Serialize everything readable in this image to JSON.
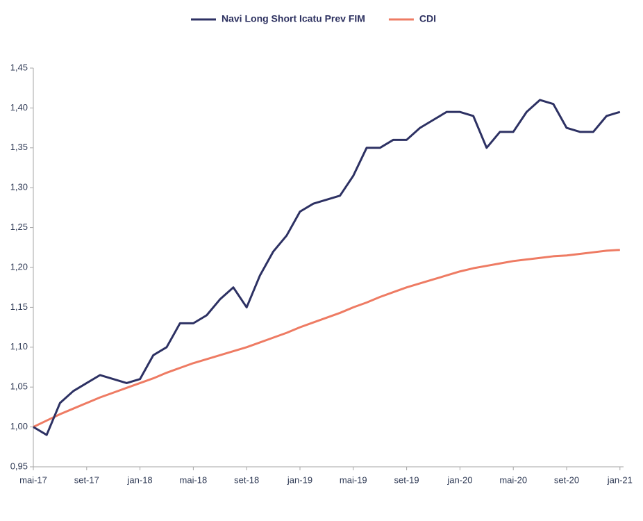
{
  "chart_data": {
    "type": "line",
    "categories": [
      "mai-17",
      null,
      null,
      null,
      "set-17",
      null,
      null,
      null,
      "jan-18",
      null,
      null,
      null,
      "mai-18",
      null,
      null,
      null,
      "set-18",
      null,
      null,
      null,
      "jan-19",
      null,
      null,
      null,
      "mai-19",
      null,
      null,
      null,
      "set-19",
      null,
      null,
      null,
      "jan-20",
      null,
      null,
      null,
      "mai-20",
      null,
      null,
      null,
      "set-20",
      null,
      null,
      null,
      "jan-21"
    ],
    "series": [
      {
        "name": "Navi Long Short Icatu Prev FIM",
        "color": "#2d3163",
        "values": [
          1.0,
          0.99,
          1.03,
          1.045,
          1.055,
          1.065,
          1.06,
          1.055,
          1.06,
          1.09,
          1.1,
          1.13,
          1.13,
          1.14,
          1.16,
          1.175,
          1.15,
          1.19,
          1.22,
          1.24,
          1.27,
          1.28,
          1.285,
          1.29,
          1.315,
          1.35,
          1.35,
          1.36,
          1.36,
          1.375,
          1.385,
          1.395,
          1.395,
          1.39,
          1.35,
          1.37,
          1.37,
          1.395,
          1.41,
          1.405,
          1.375,
          1.37,
          1.37,
          1.39,
          1.395
        ]
      },
      {
        "name": "CDI",
        "color": "#ee7b63",
        "values": [
          1.0,
          1.008,
          1.016,
          1.023,
          1.03,
          1.037,
          1.043,
          1.049,
          1.055,
          1.061,
          1.068,
          1.074,
          1.08,
          1.085,
          1.09,
          1.095,
          1.1,
          1.106,
          1.112,
          1.118,
          1.125,
          1.131,
          1.137,
          1.143,
          1.15,
          1.156,
          1.163,
          1.169,
          1.175,
          1.18,
          1.185,
          1.19,
          1.195,
          1.199,
          1.202,
          1.205,
          1.208,
          1.21,
          1.212,
          1.214,
          1.215,
          1.217,
          1.219,
          1.221,
          1.222
        ]
      }
    ],
    "ylim": [
      0.95,
      1.45
    ],
    "yticks": [
      {
        "value": 0.95,
        "label": "0,95"
      },
      {
        "value": 1.0,
        "label": "1,00"
      },
      {
        "value": 1.05,
        "label": "1,05"
      },
      {
        "value": 1.1,
        "label": "1,10"
      },
      {
        "value": 1.15,
        "label": "1,15"
      },
      {
        "value": 1.2,
        "label": "1,20"
      },
      {
        "value": 1.25,
        "label": "1,25"
      },
      {
        "value": 1.3,
        "label": "1,30"
      },
      {
        "value": 1.35,
        "label": "1,35"
      },
      {
        "value": 1.4,
        "label": "1,40"
      },
      {
        "value": 1.45,
        "label": "1,45"
      }
    ],
    "grid": false,
    "legend": "top"
  }
}
